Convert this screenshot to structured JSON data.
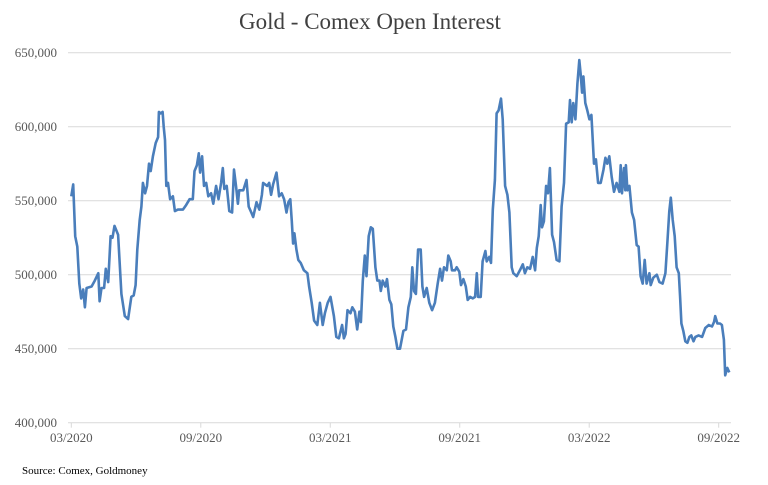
{
  "chart_data": {
    "type": "line",
    "title": "Gold - Comex Open Interest",
    "source": "Source: Comex, Goldmoney",
    "xlabel": "",
    "ylabel": "",
    "ylim": [
      400000,
      650000
    ],
    "yticks": [
      400000,
      450000,
      500000,
      550000,
      600000,
      650000
    ],
    "ytick_labels": [
      "400,000",
      "450,000",
      "500,000",
      "550,000",
      "600,000",
      "650,000"
    ],
    "x_unit": "months since 03/2020",
    "xlim": [
      0,
      30.6
    ],
    "xticks": [
      0,
      6,
      12,
      18,
      24,
      30
    ],
    "xtick_labels": [
      "03/2020",
      "09/2020",
      "03/2021",
      "09/2021",
      "03/2022",
      "09/2022"
    ],
    "grid": "horizontal",
    "legend": "none",
    "color": "#4a7ebb",
    "series": [
      {
        "name": "Comex Open Interest",
        "x": [
          0,
          0.09,
          0.18,
          0.28,
          0.37,
          0.46,
          0.55,
          0.63,
          0.71,
          0.94,
          1.09,
          1.25,
          1.31,
          1.4,
          1.52,
          1.6,
          1.71,
          1.82,
          1.91,
          2.0,
          2.17,
          2.32,
          2.48,
          2.63,
          2.78,
          2.89,
          2.98,
          3.06,
          3.17,
          3.25,
          3.32,
          3.42,
          3.51,
          3.6,
          3.68,
          3.78,
          3.91,
          4.02,
          4.06,
          4.14,
          4.23,
          4.28,
          4.34,
          4.4,
          4.48,
          4.58,
          4.71,
          4.8,
          4.94,
          5.17,
          5.32,
          5.48,
          5.63,
          5.71,
          5.82,
          5.91,
          5.97,
          6.06,
          6.15,
          6.25,
          6.35,
          6.48,
          6.58,
          6.71,
          6.82,
          6.94,
          7.02,
          7.09,
          7.2,
          7.32,
          7.45,
          7.54,
          7.63,
          7.72,
          7.78,
          7.97,
          8.12,
          8.22,
          8.34,
          8.43,
          8.58,
          8.71,
          8.83,
          8.89,
          9.08,
          9.17,
          9.26,
          9.35,
          9.51,
          9.63,
          9.75,
          9.86,
          9.97,
          10.06,
          10.15,
          10.22,
          10.28,
          10.34,
          10.43,
          10.52,
          10.63,
          10.78,
          10.94,
          11.02,
          11.14,
          11.25,
          11.4,
          11.52,
          11.65,
          11.75,
          11.88,
          12.01,
          12.17,
          12.28,
          12.4,
          12.55,
          12.63,
          12.71,
          12.8,
          12.94,
          13.02,
          13.14,
          13.25,
          13.35,
          13.42,
          13.51,
          13.6,
          13.68,
          13.78,
          13.88,
          13.97,
          14.09,
          14.18,
          14.28,
          14.34,
          14.43,
          14.55,
          14.63,
          14.74,
          14.83,
          14.92,
          15.02,
          15.11,
          15.23,
          15.39,
          15.51,
          15.62,
          15.73,
          15.8,
          15.88,
          15.97,
          16.07,
          16.19,
          16.27,
          16.35,
          16.47,
          16.59,
          16.72,
          16.85,
          16.98,
          17.09,
          17.18,
          17.27,
          17.4,
          17.47,
          17.58,
          17.64,
          17.78,
          17.86,
          17.98,
          18.06,
          18.17,
          18.28,
          18.37,
          18.48,
          18.6,
          18.71,
          18.79,
          18.85,
          18.97,
          19.06,
          19.19,
          19.25,
          19.37,
          19.45,
          19.53,
          19.63,
          19.71,
          19.8,
          19.91,
          19.99,
          20.1,
          20.21,
          20.3,
          20.41,
          20.48,
          20.64,
          20.79,
          20.92,
          21.02,
          21.13,
          21.26,
          21.38,
          21.49,
          21.57,
          21.66,
          21.75,
          21.81,
          21.9,
          22.0,
          22.09,
          22.18,
          22.28,
          22.37,
          22.49,
          22.62,
          22.72,
          22.83,
          22.93,
          23.05,
          23.11,
          23.19,
          23.26,
          23.36,
          23.45,
          23.54,
          23.6,
          23.67,
          23.73,
          23.82,
          23.91,
          24.01,
          24.1,
          24.22,
          24.31,
          24.41,
          24.53,
          24.66,
          24.75,
          24.84,
          24.93,
          25.04,
          25.15,
          25.27,
          25.4,
          25.46,
          25.52,
          25.61,
          25.67,
          25.7,
          25.77,
          25.86,
          25.98,
          26.08,
          26.2,
          26.29,
          26.38,
          26.48,
          26.57,
          26.66,
          26.79,
          26.85,
          26.97,
          27.13,
          27.25,
          27.4,
          27.53,
          27.62,
          27.71,
          27.78,
          27.87,
          27.96,
          28.05,
          28.15,
          28.21,
          28.27,
          28.36,
          28.45,
          28.55,
          28.64,
          28.73,
          28.83,
          28.92,
          29.07,
          29.23,
          29.38,
          29.54,
          29.69,
          29.78,
          29.84,
          29.94,
          30.06,
          30.15,
          30.24,
          30.3,
          30.4,
          30.49
        ],
        "values": [
          553000,
          561000,
          526000,
          519000,
          494000,
          484000,
          490000,
          478000,
          491000,
          492000,
          496000,
          501000,
          482000,
          491000,
          491000,
          504000,
          495000,
          526000,
          525000,
          533000,
          527000,
          487000,
          472000,
          470000,
          485000,
          486000,
          493000,
          517000,
          537000,
          546000,
          562000,
          555000,
          560000,
          575000,
          570000,
          580000,
          589000,
          593000,
          610000,
          609000,
          610000,
          600000,
          591000,
          560000,
          562000,
          551000,
          553000,
          543000,
          544000,
          544000,
          547000,
          551000,
          551000,
          570000,
          574000,
          582000,
          569000,
          580000,
          560000,
          562000,
          553000,
          555000,
          548000,
          560000,
          551000,
          562000,
          572000,
          558000,
          560000,
          543000,
          542000,
          571000,
          560000,
          548000,
          557000,
          557000,
          564000,
          546000,
          542000,
          539000,
          549000,
          544000,
          554000,
          562000,
          560000,
          562000,
          554000,
          561000,
          569000,
          553000,
          555000,
          551000,
          542000,
          549000,
          551000,
          536000,
          521000,
          528000,
          517000,
          510000,
          508000,
          503000,
          501000,
          492000,
          481000,
          469000,
          466000,
          481000,
          466000,
          474000,
          481000,
          485000,
          472000,
          458000,
          457000,
          466000,
          457000,
          460000,
          476000,
          474000,
          478000,
          475000,
          463000,
          475000,
          468000,
          496000,
          513000,
          499000,
          526000,
          532000,
          531000,
          505000,
          496000,
          496000,
          489000,
          496000,
          492000,
          497000,
          483000,
          480000,
          465000,
          458000,
          450000,
          450000,
          462000,
          463000,
          478000,
          485000,
          505000,
          489000,
          487000,
          517000,
          517000,
          492000,
          485000,
          491000,
          481000,
          476000,
          481000,
          494000,
          504000,
          496000,
          505000,
          503000,
          513000,
          509000,
          503000,
          503000,
          505000,
          502000,
          493000,
          497000,
          492000,
          483000,
          485000,
          484000,
          485000,
          501000,
          485000,
          485000,
          509000,
          516000,
          509000,
          512000,
          508000,
          544000,
          564000,
          609000,
          611000,
          619000,
          605000,
          560000,
          554000,
          542000,
          505000,
          501000,
          499000,
          503000,
          507000,
          501000,
          505000,
          504000,
          512000,
          503000,
          518000,
          526000,
          547000,
          532000,
          536000,
          560000,
          555000,
          572000,
          527000,
          522000,
          510000,
          509000,
          546000,
          562000,
          602000,
          603000,
          618000,
          603000,
          616000,
          605000,
          629000,
          645000,
          636000,
          623000,
          634000,
          616000,
          611000,
          605000,
          608000,
          575000,
          578000,
          562000,
          562000,
          571000,
          579000,
          575000,
          580000,
          566000,
          556000,
          562000,
          556000,
          574000,
          555000,
          572000,
          557000,
          574000,
          557000,
          560000,
          542000,
          537000,
          520000,
          519000,
          499000,
          494000,
          510000,
          494000,
          501000,
          493000,
          498000,
          500000,
          495000,
          494000,
          501000,
          521000,
          543000,
          552000,
          537000,
          526000,
          505000,
          501000,
          485000,
          467000,
          462000,
          455000,
          454000,
          458000,
          459000,
          455000,
          458000,
          459000,
          458000,
          464000,
          466000,
          465000,
          468000,
          472000,
          467000,
          467000,
          466000,
          456000,
          432000,
          437000,
          434000
        ]
      }
    ]
  }
}
